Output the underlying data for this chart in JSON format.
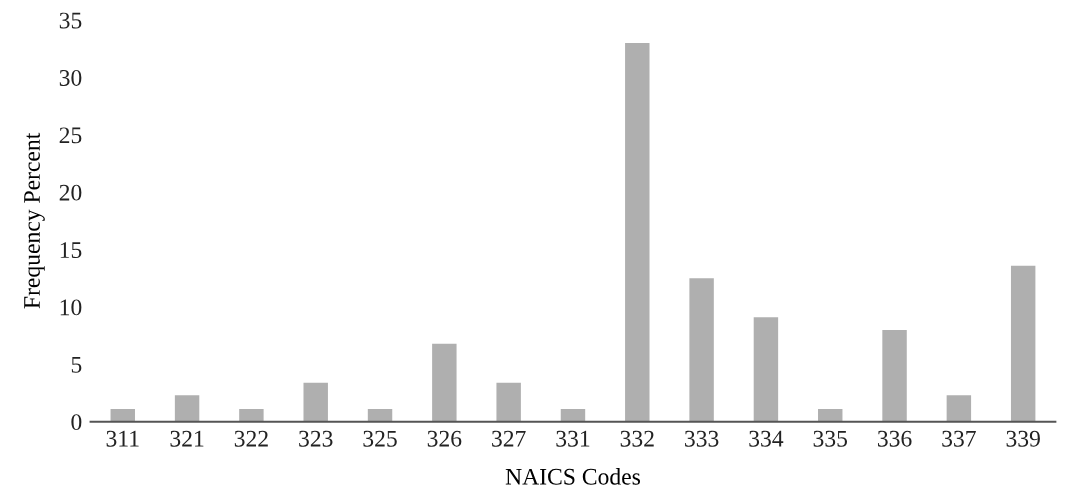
{
  "chart_data": {
    "type": "bar",
    "xlabel": "NAICS Codes",
    "ylabel": "Frequency Percent",
    "categories": [
      "311",
      "321",
      "322",
      "323",
      "325",
      "326",
      "327",
      "331",
      "332",
      "333",
      "334",
      "335",
      "336",
      "337",
      "339"
    ],
    "values": [
      1.1,
      2.3,
      1.1,
      3.4,
      1.1,
      6.8,
      3.4,
      1.1,
      33.0,
      12.5,
      9.1,
      1.1,
      8.0,
      2.3,
      13.6
    ],
    "color": "#afafaf",
    "ylim": [
      0,
      35
    ],
    "yticks": [
      0,
      5,
      10,
      15,
      20,
      25,
      30,
      35
    ],
    "grid": false
  }
}
